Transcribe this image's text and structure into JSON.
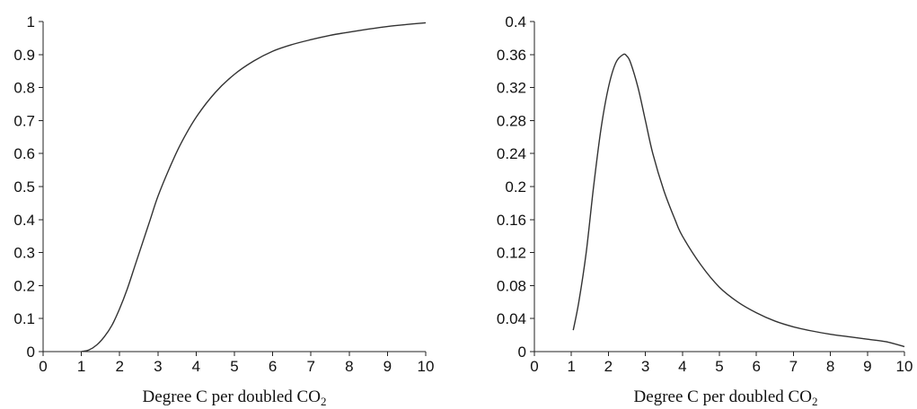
{
  "chart_data": [
    {
      "type": "line",
      "title": "",
      "xlabel": "Degree C per doubled CO",
      "xlabel_subscript": "2",
      "ylabel": "",
      "xlim": [
        0,
        10
      ],
      "ylim": [
        0,
        1
      ],
      "x_ticks": [
        "0",
        "1",
        "2",
        "3",
        "4",
        "5",
        "6",
        "7",
        "8",
        "9",
        "10"
      ],
      "y_ticks": [
        "0",
        "0.1",
        "0.2",
        "0.3",
        "0.4",
        "0.5",
        "0.6",
        "0.7",
        "0.8",
        "0.9",
        "1"
      ],
      "grid": false,
      "legend": "none",
      "series": [
        {
          "x": [
            1.0,
            1.2,
            1.4,
            1.6,
            1.8,
            2.0,
            2.2,
            2.4,
            2.6,
            2.8,
            3.0,
            3.3,
            3.6,
            4.0,
            4.5,
            5.0,
            5.5,
            6.0,
            6.5,
            7.0,
            7.5,
            8.0,
            8.5,
            9.0,
            9.5,
            10.0
          ],
          "y": [
            0.0,
            0.005,
            0.02,
            0.045,
            0.08,
            0.13,
            0.19,
            0.26,
            0.33,
            0.4,
            0.47,
            0.555,
            0.63,
            0.71,
            0.785,
            0.84,
            0.88,
            0.91,
            0.93,
            0.945,
            0.958,
            0.968,
            0.977,
            0.985,
            0.991,
            0.996
          ]
        }
      ]
    },
    {
      "type": "line",
      "title": "",
      "xlabel": "Degree C per doubled CO",
      "xlabel_subscript": "2",
      "ylabel": "",
      "xlim": [
        0,
        10
      ],
      "ylim": [
        0,
        0.4
      ],
      "x_ticks": [
        "0",
        "1",
        "2",
        "3",
        "4",
        "5",
        "6",
        "7",
        "8",
        "9",
        "10"
      ],
      "y_ticks": [
        "0",
        "0.04",
        "0.08",
        "0.12",
        "0.16",
        "0.2",
        "0.24",
        "0.28",
        "0.32",
        "0.36",
        "0.4"
      ],
      "grid": false,
      "legend": "none",
      "series": [
        {
          "x": [
            1.05,
            1.2,
            1.4,
            1.6,
            1.8,
            2.0,
            2.2,
            2.4,
            2.5,
            2.6,
            2.8,
            3.0,
            3.2,
            3.5,
            3.8,
            4.0,
            4.5,
            5.0,
            5.5,
            6.0,
            6.5,
            7.0,
            7.5,
            8.0,
            8.5,
            9.0,
            9.5,
            10.0
          ],
          "y": [
            0.026,
            0.06,
            0.12,
            0.2,
            0.27,
            0.32,
            0.35,
            0.36,
            0.358,
            0.35,
            0.32,
            0.28,
            0.24,
            0.195,
            0.16,
            0.14,
            0.105,
            0.078,
            0.06,
            0.047,
            0.037,
            0.03,
            0.025,
            0.021,
            0.018,
            0.015,
            0.012,
            0.006
          ]
        }
      ]
    }
  ]
}
